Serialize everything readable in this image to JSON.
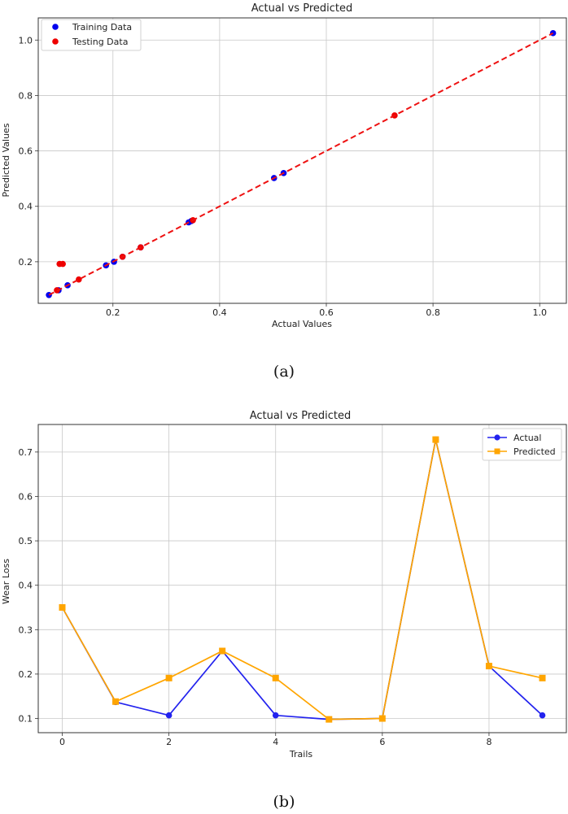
{
  "captions": {
    "a": "(a)",
    "b": "(b)"
  },
  "colors": {
    "training": "#0000ee",
    "testing": "#ee0000",
    "ideal": "#ee1111",
    "actual": "#2222ee",
    "predicted": "#ffa500",
    "grid": "#c8c8c8"
  },
  "chart_data": [
    {
      "type": "scatter",
      "title": "Actual vs Predicted",
      "xlabel": "Actual Values",
      "ylabel": "Predicted Values",
      "xlim": [
        0.06,
        1.05
      ],
      "ylim": [
        0.05,
        1.08
      ],
      "xticks": [
        0.2,
        0.4,
        0.6,
        0.8,
        1.0
      ],
      "xtick_labels": [
        "0.2",
        "0.4",
        "0.6",
        "0.8",
        "1.0"
      ],
      "yticks": [
        0.2,
        0.4,
        0.6,
        0.8,
        1.0
      ],
      "ytick_labels": [
        "0.2",
        "0.4",
        "0.6",
        "0.8",
        "1.0"
      ],
      "grid": true,
      "legend": "top-left",
      "series": [
        {
          "name": "Training Data",
          "color": "#0000ee",
          "x": [
            0.08,
            0.098,
            0.115,
            0.187,
            0.202,
            0.218,
            0.252,
            0.342,
            0.347,
            0.502,
            0.52,
            1.025
          ],
          "y": [
            0.08,
            0.097,
            0.115,
            0.187,
            0.2,
            0.218,
            0.252,
            0.342,
            0.347,
            0.502,
            0.52,
            1.025
          ]
        },
        {
          "name": "Testing Data",
          "color": "#ee0000",
          "x": [
            0.095,
            0.1,
            0.106,
            0.136,
            0.218,
            0.252,
            0.35,
            0.728
          ],
          "y": [
            0.097,
            0.192,
            0.192,
            0.136,
            0.218,
            0.252,
            0.35,
            0.728
          ]
        }
      ],
      "reference_line": {
        "x": [
          0.08,
          1.025
        ],
        "y": [
          0.08,
          1.025
        ],
        "style": "dashed"
      }
    },
    {
      "type": "line",
      "title": "Actual vs Predicted",
      "xlabel": "Trails",
      "ylabel": "Wear Loss",
      "x": [
        0,
        1,
        2,
        3,
        4,
        5,
        6,
        7,
        8,
        9
      ],
      "xlim": [
        -0.45,
        9.45
      ],
      "ylim": [
        0.068,
        0.762
      ],
      "xticks": [
        0,
        2,
        4,
        6,
        8
      ],
      "xtick_labels": [
        "0",
        "2",
        "4",
        "6",
        "8"
      ],
      "yticks": [
        0.1,
        0.2,
        0.3,
        0.4,
        0.5,
        0.6,
        0.7
      ],
      "ytick_labels": [
        "0.1",
        "0.2",
        "0.3",
        "0.4",
        "0.5",
        "0.6",
        "0.7"
      ],
      "grid": true,
      "legend": "top-right",
      "series": [
        {
          "name": "Actual",
          "color": "#2222ee",
          "marker": "circle",
          "values": [
            0.35,
            0.137,
            0.107,
            0.252,
            0.107,
            0.098,
            0.1,
            0.728,
            0.218,
            0.107
          ]
        },
        {
          "name": "Predicted",
          "color": "#ffa500",
          "marker": "square",
          "values": [
            0.35,
            0.138,
            0.191,
            0.252,
            0.191,
            0.098,
            0.1,
            0.728,
            0.218,
            0.191
          ]
        }
      ]
    }
  ]
}
